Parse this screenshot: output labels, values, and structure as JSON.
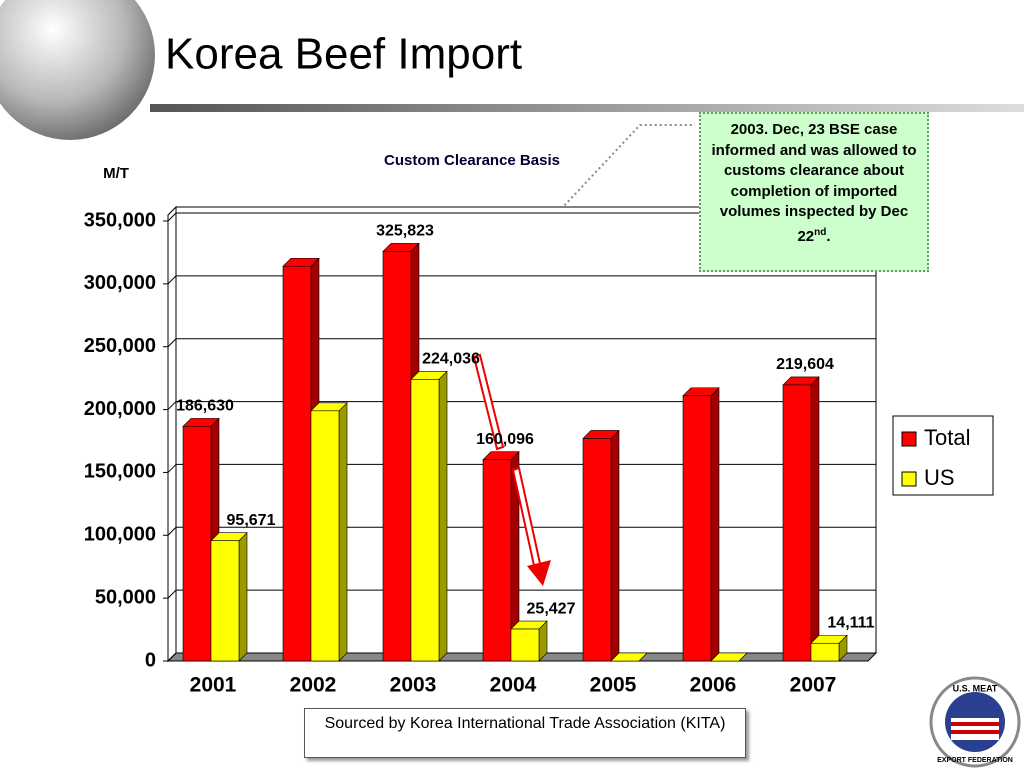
{
  "chart_data": {
    "type": "bar3d",
    "title": "Korea Beef Import",
    "subtitle": "Custom Clearance Basis",
    "y_label": "M/T",
    "categories": [
      "2001",
      "2002",
      "2003",
      "2004",
      "2005",
      "2006",
      "2007"
    ],
    "series": [
      {
        "name": "Total",
        "color": "#ff0000",
        "side_color": "#a00000",
        "values": [
          186630,
          314000,
          325823,
          160096,
          177000,
          211000,
          219604
        ],
        "value_labels": [
          "186,630",
          null,
          "325,823",
          "160,096",
          null,
          null,
          "219,604"
        ]
      },
      {
        "name": "US",
        "color": "#ffff00",
        "side_color": "#9a9a00",
        "values": [
          95671,
          199000,
          224036,
          25427,
          0,
          0,
          14111
        ],
        "value_labels": [
          "95,671",
          null,
          "224,036",
          "25,427",
          null,
          null,
          "14,111"
        ]
      }
    ],
    "ylim": [
      0,
      350000
    ],
    "yticks": [
      0,
      {
        "value": 50000,
        "label": "50,000"
      },
      {
        "value": 100000,
        "label": "100,000"
      },
      {
        "value": 150000,
        "label": "150,000"
      },
      {
        "value": 200000,
        "label": "200,000"
      },
      {
        "value": 250000,
        "label": "250,000"
      },
      {
        "value": 300000,
        "label": "300,000"
      },
      {
        "value": 350000,
        "label": "350,000"
      }
    ],
    "grid": true,
    "legend": "right",
    "annotation": {
      "text": "2003. Dec, 23 BSE case informed and was allowed to customs clearance  about completion of  imported volumes inspected by Dec 22",
      "sup": "nd",
      "end": "."
    },
    "source": "Sourced by Korea International Trade Association (KITA)",
    "logo": {
      "top": "U.S. MEAT",
      "bottom": "EXPORT FEDERATION"
    }
  }
}
